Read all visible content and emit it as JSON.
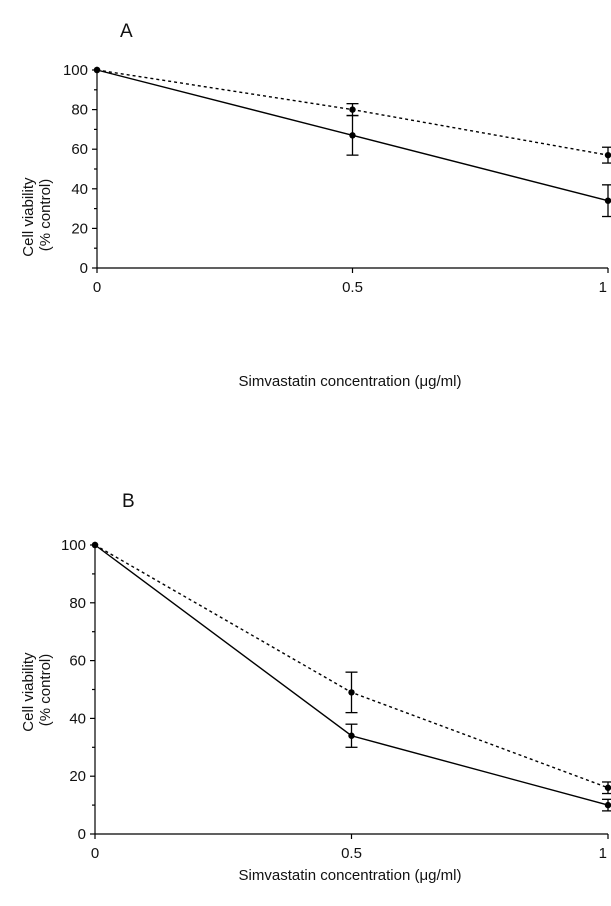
{
  "chart_data": [
    {
      "type": "line",
      "panel_label": "A",
      "xlabel": "Simvastatin concentration (μg/ml)",
      "ylabel": [
        "Cell viability",
        "(% control)"
      ],
      "xlim": [
        0,
        1
      ],
      "ylim": [
        0,
        100
      ],
      "xticks": [
        0,
        0.5,
        1
      ],
      "xtick_labels": [
        "0",
        "0.5",
        "1"
      ],
      "yticks": [
        0,
        20,
        40,
        60,
        80,
        100
      ],
      "ytick_labels": [
        "0",
        "20",
        "40",
        "60",
        "80",
        "100"
      ],
      "x": [
        0,
        0.5,
        1
      ],
      "series": [
        {
          "style": "solid",
          "values": [
            100,
            67,
            34
          ],
          "errors": [
            0,
            10,
            8
          ]
        },
        {
          "style": "dotted",
          "values": [
            100,
            80,
            57
          ],
          "errors": [
            0,
            3,
            4
          ]
        }
      ]
    },
    {
      "type": "line",
      "panel_label": "B",
      "xlabel": "Simvastatin concentration (μg/ml)",
      "ylabel": [
        "Cell viability",
        "(% control)"
      ],
      "xlim": [
        0,
        1
      ],
      "ylim": [
        0,
        100
      ],
      "xticks": [
        0,
        0.5,
        1
      ],
      "xtick_labels": [
        "0",
        "0.5",
        "1"
      ],
      "yticks": [
        0,
        20,
        40,
        60,
        80,
        100
      ],
      "ytick_labels": [
        "0",
        "20",
        "40",
        "60",
        "80",
        "100"
      ],
      "x": [
        0,
        0.5,
        1
      ],
      "series": [
        {
          "style": "solid",
          "values": [
            100,
            34,
            10
          ],
          "errors": [
            0,
            4,
            2
          ]
        },
        {
          "style": "dotted",
          "values": [
            100,
            49,
            16
          ],
          "errors": [
            0,
            7,
            2
          ]
        }
      ]
    }
  ]
}
